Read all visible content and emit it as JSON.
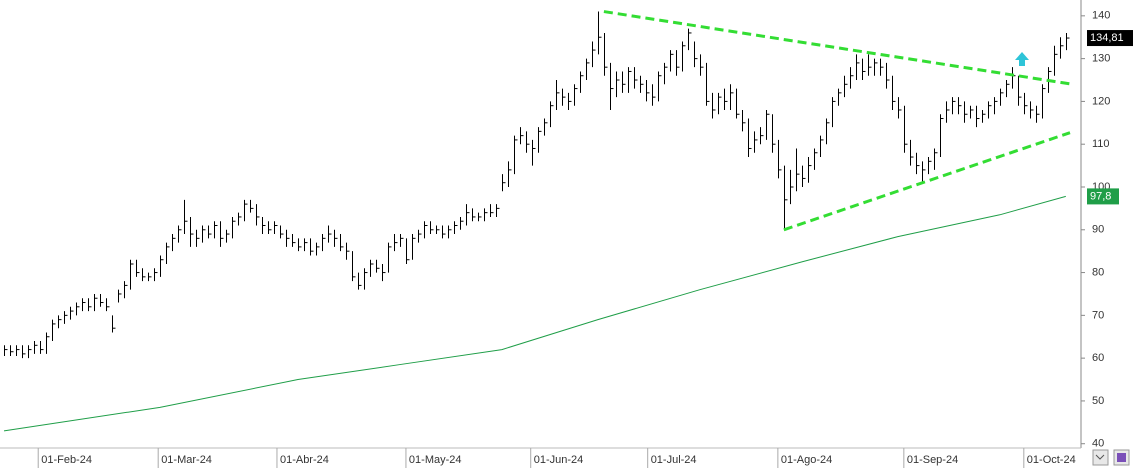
{
  "chart_data": {
    "type": "ohlc",
    "xlim": [
      -0.67,
      179.7
    ],
    "ylim": [
      39,
      143.7
    ],
    "yticks": [
      40,
      50,
      60,
      70,
      80,
      90,
      100,
      110,
      120,
      130,
      140
    ],
    "xticks": [
      {
        "value": 5.7,
        "label": "01-Feb-24"
      },
      {
        "value": 25.7,
        "label": "01-Mar-24"
      },
      {
        "value": 45.5,
        "label": "01-Abr-24"
      },
      {
        "value": 67,
        "label": "01-May-24"
      },
      {
        "value": 87.8,
        "label": "01-Jun-24"
      },
      {
        "value": 107.3,
        "label": "01-Jul-24"
      },
      {
        "value": 129,
        "label": "01-Ago-24"
      },
      {
        "value": 150,
        "label": "01-Sep-24"
      },
      {
        "value": 170,
        "label": "01-Oct-24"
      }
    ],
    "color": "#000000",
    "high": [
      63,
      63,
      63,
      63,
      63,
      64,
      64,
      66,
      69,
      70,
      71,
      72,
      73,
      74,
      74,
      75,
      75,
      74,
      70,
      76,
      78,
      83,
      83,
      81,
      80,
      81,
      84,
      87,
      89,
      91,
      97,
      93,
      90,
      91,
      91,
      92,
      92,
      90,
      93,
      94,
      97,
      97,
      96,
      93,
      92,
      92,
      91,
      90,
      89,
      88,
      88,
      88,
      87,
      89,
      91,
      90,
      89,
      87,
      85,
      80,
      81,
      83,
      83,
      82,
      87,
      89,
      89,
      88,
      89,
      90,
      92,
      92,
      91,
      91,
      91,
      92,
      93,
      96,
      95,
      94,
      95,
      96,
      96,
      103,
      106,
      112,
      114,
      113,
      111,
      114,
      116,
      120,
      125,
      123,
      122,
      124,
      127,
      130,
      134,
      141,
      136,
      129,
      127,
      127,
      128,
      128,
      126,
      125,
      124,
      127,
      129,
      132,
      132,
      134,
      137,
      134,
      131,
      129,
      122,
      122,
      123,
      124,
      123,
      118,
      116,
      113,
      114,
      118,
      117,
      111,
      105,
      104,
      109,
      105,
      107,
      109,
      112,
      116,
      121,
      123,
      126,
      128,
      131,
      130,
      131,
      130,
      130,
      129,
      126,
      121,
      119,
      111,
      108,
      106,
      107,
      109,
      117,
      120,
      121,
      121,
      120,
      119,
      119,
      118,
      120,
      121,
      123,
      125,
      128,
      126,
      122,
      120,
      119,
      124,
      128,
      133,
      135,
      136
    ],
    "low": [
      60.5,
      60.5,
      60.5,
      60,
      60,
      61,
      61,
      61,
      64,
      67,
      68,
      69,
      70,
      71,
      71,
      71,
      72,
      71,
      66,
      73,
      74,
      76,
      79,
      78,
      78,
      78,
      79,
      82,
      85,
      87,
      89,
      86,
      86,
      87,
      88,
      88,
      86,
      87,
      88,
      91,
      92,
      94,
      91,
      89,
      89,
      89,
      88,
      86,
      86,
      85,
      85,
      84,
      84,
      85,
      87,
      86,
      85,
      83,
      78,
      76,
      76,
      79,
      80,
      78,
      80,
      85,
      86,
      82,
      83,
      87,
      88,
      89,
      89,
      88,
      88,
      89,
      90,
      91,
      92,
      92,
      92,
      93,
      93,
      99,
      100,
      103,
      110,
      108,
      105,
      108,
      112,
      114,
      118,
      119,
      118,
      119,
      122,
      125,
      128,
      131,
      126,
      118,
      121,
      122,
      122,
      123,
      122,
      120,
      119,
      120,
      124,
      127,
      126,
      127,
      132,
      128,
      126,
      119,
      116,
      117,
      118,
      118,
      116,
      113,
      107,
      108,
      110,
      111,
      108,
      102,
      90,
      96,
      99,
      100,
      101,
      104,
      107,
      110,
      114,
      119,
      121,
      123,
      125,
      125,
      126,
      126,
      126,
      123,
      118,
      116,
      108,
      105,
      103,
      101,
      103,
      104,
      107,
      115,
      117,
      117,
      115,
      116,
      114,
      115,
      116,
      117,
      119,
      121,
      123,
      119,
      117,
      116,
      115,
      116,
      122,
      126,
      130,
      132
    ],
    "close": [
      62,
      61.5,
      62,
      61,
      62,
      63,
      62,
      65,
      68,
      69,
      70,
      71,
      72,
      73,
      72,
      74,
      73,
      72,
      67,
      75,
      77,
      82,
      80,
      79,
      79,
      80,
      83,
      86,
      88,
      90,
      92,
      89,
      88,
      90,
      89,
      91,
      88,
      89,
      92,
      93,
      96,
      95,
      93,
      91,
      90,
      91,
      89,
      88,
      87,
      86,
      87,
      85,
      86,
      88,
      89,
      88,
      86,
      85,
      79,
      77,
      80,
      82,
      81,
      80,
      86,
      87,
      88,
      83,
      88,
      89,
      91,
      90,
      90,
      89,
      90,
      91,
      92,
      94,
      93,
      93,
      94,
      94,
      95,
      101,
      104,
      111,
      112,
      110,
      109,
      113,
      115,
      119,
      122,
      121,
      120,
      123,
      126,
      129,
      132,
      135,
      128,
      123,
      125,
      124,
      127,
      125,
      124,
      122,
      121,
      126,
      128,
      131,
      128,
      133,
      136,
      130,
      128,
      120,
      118,
      121,
      120,
      122,
      117,
      115,
      109,
      111,
      112,
      117,
      110,
      104,
      97,
      100,
      103,
      102,
      105,
      108,
      111,
      115,
      120,
      122,
      124,
      126,
      129,
      127,
      128,
      129,
      128,
      125,
      120,
      118,
      110,
      107,
      105,
      104,
      106,
      108,
      116,
      118,
      120,
      119,
      117,
      118,
      116,
      117,
      119,
      120,
      122,
      124,
      126,
      121,
      119,
      118,
      117,
      123,
      127,
      131,
      133,
      134.81
    ],
    "moving_average": {
      "color": "#1f9e48",
      "x": [
        0,
        26,
        49,
        66,
        83,
        99,
        116,
        133,
        149,
        166,
        177
      ],
      "values": [
        43,
        48.5,
        55,
        58.5,
        62,
        69,
        76,
        82.5,
        88.4,
        93.5,
        97.8
      ]
    },
    "trendlines": [
      {
        "color": "#33dd33",
        "x": [
          100,
          177.7
        ],
        "values": [
          141,
          124.1
        ]
      },
      {
        "color": "#33dd33",
        "x": [
          130,
          177.7
        ],
        "values": [
          90,
          112.7
        ]
      }
    ],
    "price_tags": [
      {
        "value": 134.81,
        "label": "134,81",
        "color": "#000000"
      },
      {
        "value": 97.8,
        "label": "97,8",
        "color": "#1f9e48"
      }
    ]
  }
}
